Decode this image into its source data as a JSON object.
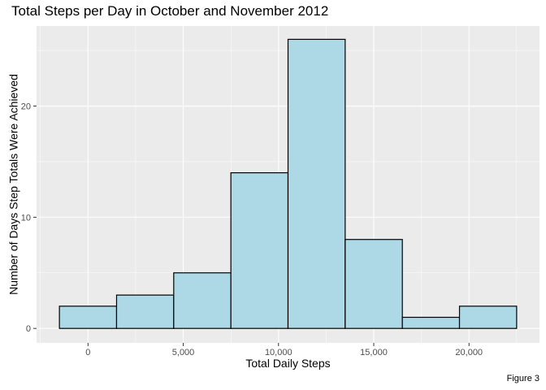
{
  "title": "Total Steps per Day in October and November 2012",
  "caption": "Figure 3",
  "chart_data": {
    "type": "bar",
    "title": "Total Steps per Day in October and November 2012",
    "xlabel": "Total Daily Steps",
    "ylabel": "Number of Days Step Totals Were Achieved",
    "xlim": [
      -2700,
      23700
    ],
    "ylim": [
      -1.3,
      27.2
    ],
    "bin_width": 3000,
    "bin_centers": [
      0,
      3000,
      6000,
      9000,
      12000,
      15000,
      18000,
      21000
    ],
    "values": [
      2,
      3,
      5,
      14,
      26,
      8,
      1,
      2
    ],
    "x_ticks": [
      0,
      5000,
      10000,
      15000,
      20000
    ],
    "x_tick_labels": [
      "0",
      "5,000",
      "10,000",
      "15,000",
      "20,000"
    ],
    "y_ticks": [
      0,
      10,
      20
    ],
    "y_tick_labels": [
      "0",
      "10",
      "20"
    ],
    "grid": true,
    "bar_fill": "#add8e6",
    "bar_stroke": "#000000",
    "panel_bg": "#ebebeb"
  }
}
